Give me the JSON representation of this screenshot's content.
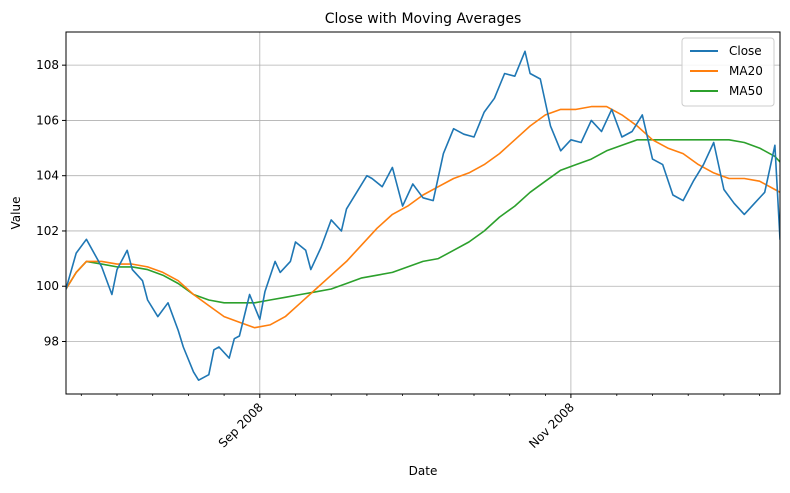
{
  "chart_data": {
    "type": "line",
    "title": "Close with Moving Averages",
    "xlabel": "Date",
    "ylabel": "Value",
    "x_start": "2008-07-25",
    "x_end": "2008-12-12",
    "xlim": [
      "2008-07-25",
      "2008-12-12"
    ],
    "ylim": [
      96.1,
      109.2
    ],
    "grid": true,
    "legend_position": "top-right",
    "x_ticks": [
      {
        "date": "2008-09-01",
        "label": "Sep 2008"
      },
      {
        "date": "2008-11-01",
        "label": "Nov 2008"
      }
    ],
    "y_ticks": [
      98,
      100,
      102,
      104,
      106,
      108
    ],
    "series": [
      {
        "name": "Close",
        "color": "#1f77b4",
        "x": [
          "2008-07-25",
          "2008-07-27",
          "2008-07-29",
          "2008-08-01",
          "2008-08-03",
          "2008-08-04",
          "2008-08-06",
          "2008-08-07",
          "2008-08-09",
          "2008-08-10",
          "2008-08-12",
          "2008-08-14",
          "2008-08-16",
          "2008-08-17",
          "2008-08-19",
          "2008-08-20",
          "2008-08-22",
          "2008-08-23",
          "2008-08-24",
          "2008-08-26",
          "2008-08-27",
          "2008-08-28",
          "2008-08-30",
          "2008-09-01",
          "2008-09-02",
          "2008-09-04",
          "2008-09-05",
          "2008-09-07",
          "2008-09-08",
          "2008-09-10",
          "2008-09-11",
          "2008-09-13",
          "2008-09-15",
          "2008-09-17",
          "2008-09-18",
          "2008-09-20",
          "2008-09-22",
          "2008-09-23",
          "2008-09-25",
          "2008-09-27",
          "2008-09-29",
          "2008-10-01",
          "2008-10-03",
          "2008-10-05",
          "2008-10-07",
          "2008-10-09",
          "2008-10-11",
          "2008-10-13",
          "2008-10-15",
          "2008-10-17",
          "2008-10-19",
          "2008-10-21",
          "2008-10-23",
          "2008-10-24",
          "2008-10-26",
          "2008-10-28",
          "2008-10-30",
          "2008-11-01",
          "2008-11-03",
          "2008-11-05",
          "2008-11-07",
          "2008-11-09",
          "2008-11-11",
          "2008-11-13",
          "2008-11-15",
          "2008-11-17",
          "2008-11-19",
          "2008-11-21",
          "2008-11-23",
          "2008-11-25",
          "2008-11-27",
          "2008-11-29",
          "2008-12-01",
          "2008-12-03",
          "2008-12-05",
          "2008-12-07",
          "2008-12-09",
          "2008-12-11",
          "2008-12-12"
        ],
        "values": [
          99.9,
          101.2,
          101.7,
          100.7,
          99.7,
          100.6,
          101.3,
          100.6,
          100.2,
          99.5,
          98.9,
          99.4,
          98.4,
          97.8,
          96.9,
          96.6,
          96.8,
          97.7,
          97.8,
          97.4,
          98.1,
          98.2,
          99.7,
          98.8,
          99.8,
          100.9,
          100.5,
          100.9,
          101.6,
          101.3,
          100.6,
          101.4,
          102.4,
          102.0,
          102.8,
          103.4,
          104.0,
          103.9,
          103.6,
          104.3,
          102.9,
          103.7,
          103.2,
          103.1,
          104.8,
          105.7,
          105.5,
          105.4,
          106.3,
          106.8,
          107.7,
          107.6,
          108.5,
          107.7,
          107.5,
          105.8,
          104.9,
          105.3,
          105.2,
          106.0,
          105.6,
          106.4,
          105.4,
          105.6,
          106.2,
          104.6,
          104.4,
          103.3,
          103.1,
          103.8,
          104.4,
          105.2,
          103.5,
          103.0,
          102.6,
          103.0,
          103.4,
          105.1,
          101.7
        ]
      },
      {
        "name": "MA20",
        "color": "#ff7f0e",
        "x": [
          "2008-07-25",
          "2008-07-27",
          "2008-07-29",
          "2008-08-01",
          "2008-08-04",
          "2008-08-07",
          "2008-08-10",
          "2008-08-13",
          "2008-08-16",
          "2008-08-19",
          "2008-08-22",
          "2008-08-25",
          "2008-08-28",
          "2008-08-31",
          "2008-09-03",
          "2008-09-06",
          "2008-09-09",
          "2008-09-12",
          "2008-09-15",
          "2008-09-18",
          "2008-09-21",
          "2008-09-24",
          "2008-09-27",
          "2008-09-30",
          "2008-10-03",
          "2008-10-06",
          "2008-10-09",
          "2008-10-12",
          "2008-10-15",
          "2008-10-18",
          "2008-10-21",
          "2008-10-24",
          "2008-10-27",
          "2008-10-30",
          "2008-11-02",
          "2008-11-05",
          "2008-11-08",
          "2008-11-11",
          "2008-11-14",
          "2008-11-17",
          "2008-11-20",
          "2008-11-23",
          "2008-11-26",
          "2008-11-29",
          "2008-12-02",
          "2008-12-05",
          "2008-12-08",
          "2008-12-11",
          "2008-12-12"
        ],
        "values": [
          99.9,
          100.5,
          100.9,
          100.9,
          100.8,
          100.8,
          100.7,
          100.5,
          100.2,
          99.7,
          99.3,
          98.9,
          98.7,
          98.5,
          98.6,
          98.9,
          99.4,
          99.9,
          100.4,
          100.9,
          101.5,
          102.1,
          102.6,
          102.9,
          103.3,
          103.6,
          103.9,
          104.1,
          104.4,
          104.8,
          105.3,
          105.8,
          106.2,
          106.4,
          106.4,
          106.5,
          106.5,
          106.2,
          105.8,
          105.3,
          105.0,
          104.8,
          104.4,
          104.1,
          103.9,
          103.9,
          103.8,
          103.5,
          103.4
        ]
      },
      {
        "name": "MA50",
        "color": "#2ca02c",
        "x": [
          "2008-07-25",
          "2008-07-27",
          "2008-07-29",
          "2008-08-01",
          "2008-08-04",
          "2008-08-07",
          "2008-08-10",
          "2008-08-13",
          "2008-08-16",
          "2008-08-19",
          "2008-08-22",
          "2008-08-25",
          "2008-08-28",
          "2008-08-31",
          "2008-09-03",
          "2008-09-06",
          "2008-09-09",
          "2008-09-12",
          "2008-09-15",
          "2008-09-18",
          "2008-09-21",
          "2008-09-24",
          "2008-09-27",
          "2008-09-30",
          "2008-10-03",
          "2008-10-06",
          "2008-10-09",
          "2008-10-12",
          "2008-10-15",
          "2008-10-18",
          "2008-10-21",
          "2008-10-24",
          "2008-10-27",
          "2008-10-30",
          "2008-11-02",
          "2008-11-05",
          "2008-11-08",
          "2008-11-11",
          "2008-11-14",
          "2008-11-17",
          "2008-11-20",
          "2008-11-23",
          "2008-11-26",
          "2008-11-29",
          "2008-12-02",
          "2008-12-05",
          "2008-12-08",
          "2008-12-11",
          "2008-12-12"
        ],
        "values": [
          99.9,
          100.5,
          100.9,
          100.8,
          100.7,
          100.7,
          100.6,
          100.4,
          100.1,
          99.7,
          99.5,
          99.4,
          99.4,
          99.4,
          99.5,
          99.6,
          99.7,
          99.8,
          99.9,
          100.1,
          100.3,
          100.4,
          100.5,
          100.7,
          100.9,
          101.0,
          101.3,
          101.6,
          102.0,
          102.5,
          102.9,
          103.4,
          103.8,
          104.2,
          104.4,
          104.6,
          104.9,
          105.1,
          105.3,
          105.3,
          105.3,
          105.3,
          105.3,
          105.3,
          105.3,
          105.2,
          105.0,
          104.7,
          104.5
        ]
      }
    ]
  }
}
